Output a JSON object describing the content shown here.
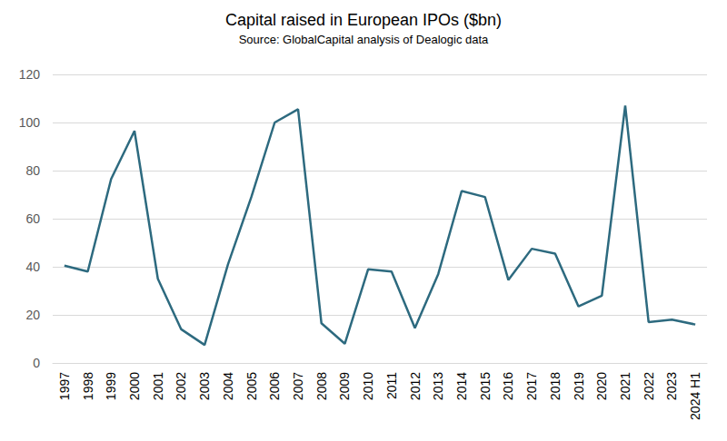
{
  "chart_data": {
    "type": "line",
    "title": "Capital raised in European IPOs ($bn)",
    "subtitle": "Source: GlobalCapital analysis of Dealogic data",
    "categories": [
      "1997",
      "1998",
      "1999",
      "2000",
      "2001",
      "2002",
      "2003",
      "2004",
      "2005",
      "2006",
      "2007",
      "2008",
      "2009",
      "2010",
      "2011",
      "2012",
      "2013",
      "2014",
      "2015",
      "2016",
      "2017",
      "2018",
      "2019",
      "2020",
      "2021",
      "2022",
      "2023",
      "2024 H1"
    ],
    "values": [
      40.5,
      38,
      76.5,
      96.5,
      35,
      14,
      7.5,
      41,
      69,
      100,
      105.5,
      16.5,
      8,
      39,
      38,
      14.5,
      37,
      71.5,
      69,
      34.5,
      47.5,
      45.5,
      23.5,
      28,
      107,
      17,
      18,
      16
    ],
    "color": "#2d6a7f",
    "ylim": [
      0,
      120
    ],
    "yticks": [
      0,
      20,
      40,
      60,
      80,
      100,
      120
    ],
    "grid": true
  }
}
